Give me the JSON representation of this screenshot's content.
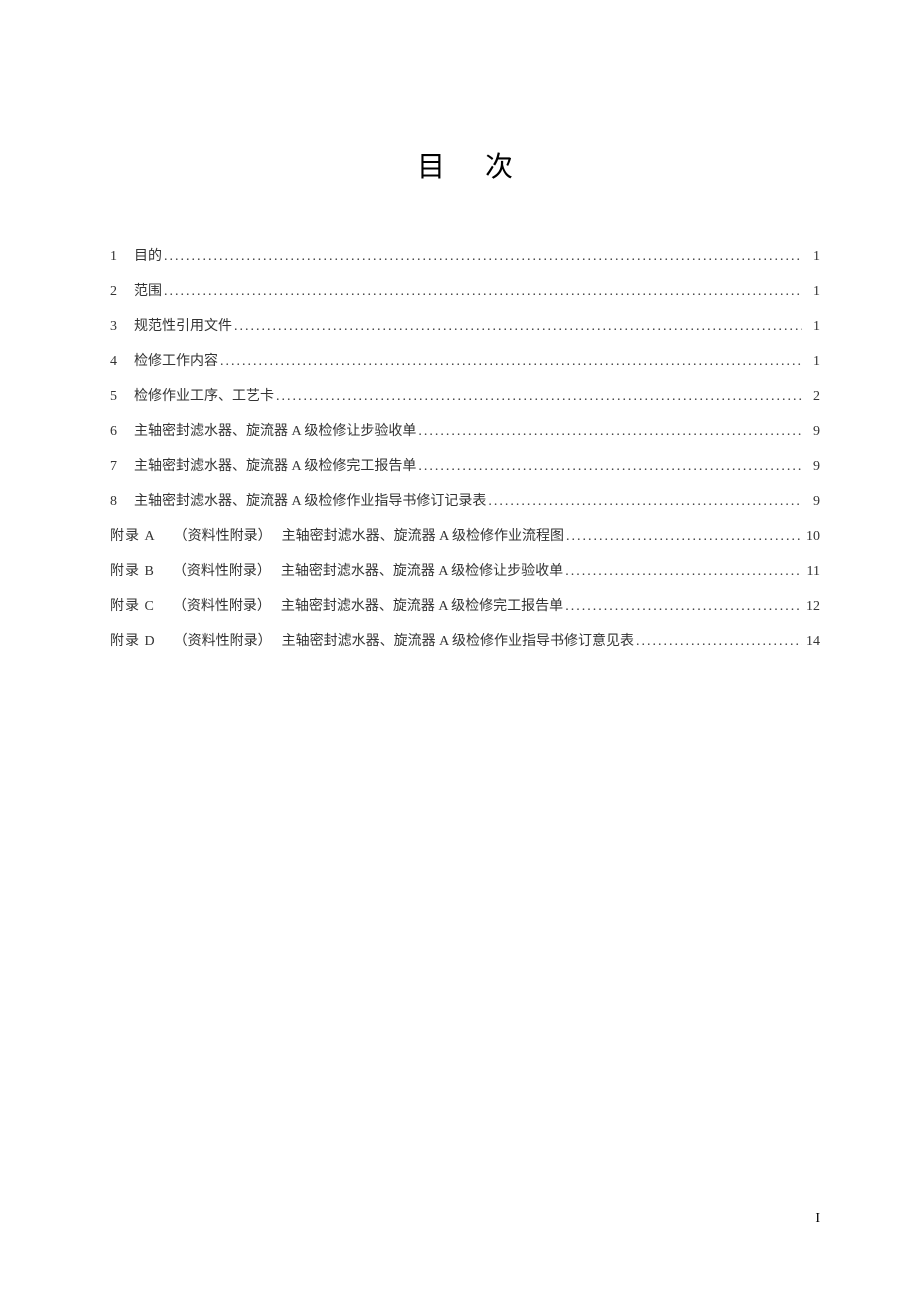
{
  "title": "目次",
  "toc": {
    "main": [
      {
        "num": "1",
        "text": "目的",
        "page": "1"
      },
      {
        "num": "2",
        "text": "范围",
        "page": "1"
      },
      {
        "num": "3",
        "text": "规范性引用文件",
        "page": "1"
      },
      {
        "num": "4",
        "text": "检修工作内容",
        "page": "1"
      },
      {
        "num": "5",
        "text": "检修作业工序、工艺卡",
        "page": "2"
      },
      {
        "num": "6",
        "text": "主轴密封滤水器、旋流器 A 级检修让步验收单",
        "page": "9"
      },
      {
        "num": "7",
        "text": "主轴密封滤水器、旋流器 A 级检修完工报告单",
        "page": "9"
      },
      {
        "num": "8",
        "text": "主轴密封滤水器、旋流器 A 级检修作业指导书修订记录表",
        "page": "9"
      }
    ],
    "appendix": [
      {
        "label": "附录 A",
        "type": "（资料性附录）",
        "text": "主轴密封滤水器、旋流器 A 级检修作业流程图",
        "page": "10"
      },
      {
        "label": "附录 B",
        "type": "（资料性附录）",
        "text": "主轴密封滤水器、旋流器 A 级检修让步验收单",
        "page": "11"
      },
      {
        "label": "附录 C",
        "type": "（资料性附录）",
        "text": "主轴密封滤水器、旋流器 A 级检修完工报告单",
        "page": "12"
      },
      {
        "label": "附录 D",
        "type": "（资料性附录）",
        "text": "主轴密封滤水器、旋流器 A 级检修作业指导书修订意见表",
        "page": "14"
      }
    ]
  },
  "pageNumber": "I"
}
